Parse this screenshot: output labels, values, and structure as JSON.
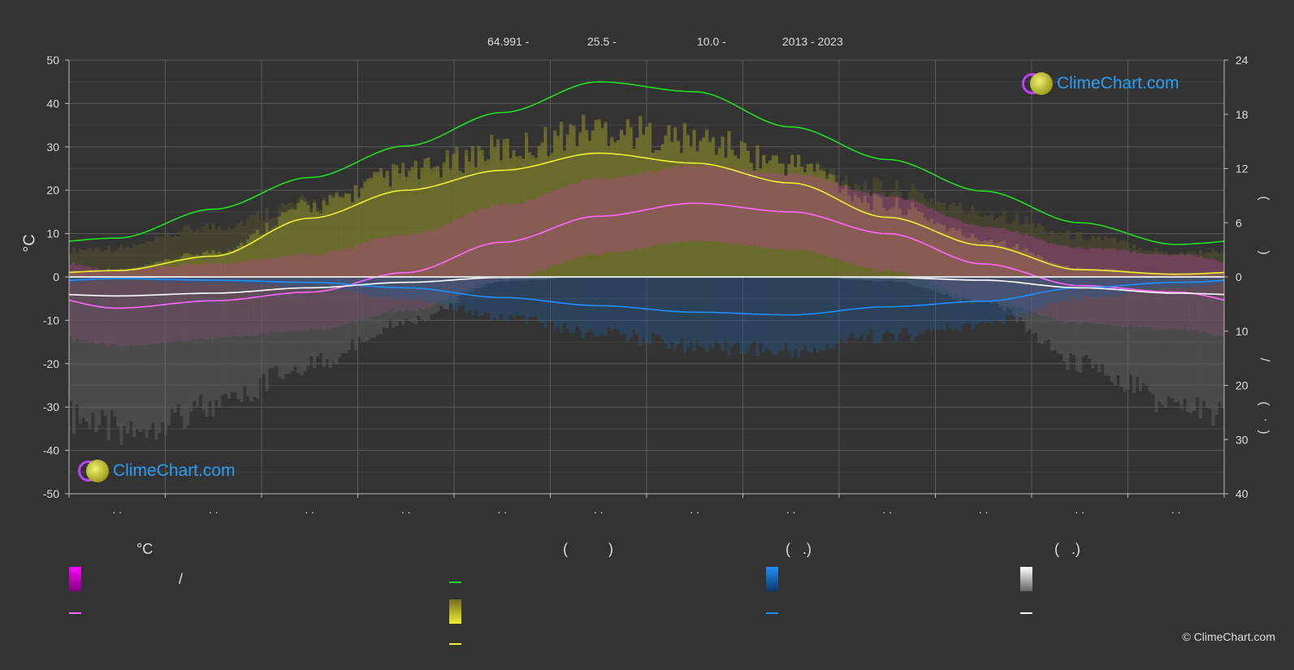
{
  "header": {
    "latitude": "64.991 -",
    "temp_value": "25.5 -",
    "rain_value": "10.0 -",
    "period": "2013 - 2023"
  },
  "brand": {
    "name": "ClimeChart.com",
    "copyright": "© ClimeChart.com"
  },
  "axes": {
    "left_label": "°C",
    "right_upper_marks": [
      "(",
      ")"
    ],
    "right_lower_marks": [
      "/",
      "(",
      "·",
      ")"
    ]
  },
  "legend": {
    "headers": [
      {
        "text": "°C"
      },
      {
        "text": "(          )"
      },
      {
        "text": "(   .)"
      },
      {
        "text": "(   .)"
      }
    ],
    "entries": [
      {
        "text": "/",
        "color": "#ff00ff",
        "kind": "gradient-box"
      },
      {
        "text": "",
        "color": "#ff66ff",
        "kind": "line"
      },
      {
        "text": "",
        "color": "#22dd22",
        "kind": "line"
      },
      {
        "text": "",
        "color": "#dede30",
        "kind": "gradient-box"
      },
      {
        "text": "",
        "color": "#eeee33",
        "kind": "line"
      },
      {
        "text": "",
        "color": "#1e8fff",
        "kind": "gradient-box"
      },
      {
        "text": "",
        "color": "#1e8fff",
        "kind": "line"
      },
      {
        "text": "",
        "color": "#eeeeee",
        "kind": "gradient-box"
      },
      {
        "text": "",
        "color": "#ffffff",
        "kind": "line"
      }
    ]
  },
  "chart_data": {
    "type": "line",
    "x": [
      0.5,
      1.5,
      2.5,
      3.5,
      4.5,
      5.5,
      6.5,
      7.5,
      8.5,
      9.5,
      10.5,
      11.5
    ],
    "x_tick_labels": [
      ". .",
      ". .",
      ". .",
      ". .",
      ". .",
      ". .",
      ". .",
      ". .",
      ". .",
      ". .",
      ". .",
      ". ."
    ],
    "xlim": [
      0,
      12
    ],
    "ylim_left": [
      -50,
      50
    ],
    "y_ticks_left": [
      50,
      40,
      30,
      20,
      10,
      0,
      -10,
      -20,
      -30,
      -40,
      -50
    ],
    "y_ticks_right_upper": [
      24,
      18,
      12,
      6,
      0
    ],
    "y_ticks_right_lower": [
      10,
      20,
      30,
      40
    ],
    "grid": true,
    "series": [
      {
        "color": "#22dd22",
        "axis": "right-hours",
        "values": [
          4.3,
          7.5,
          11.0,
          14.5,
          18.2,
          21.6,
          20.5,
          16.6,
          13.0,
          9.5,
          6.0,
          3.6
        ]
      },
      {
        "color": "#eeee33",
        "axis": "right-hours",
        "values": [
          0.7,
          2.3,
          6.5,
          9.6,
          11.8,
          13.7,
          12.6,
          10.4,
          6.6,
          3.5,
          0.8,
          0.3
        ]
      },
      {
        "color": "#ff66ff",
        "axis": "left",
        "values": [
          -7.2,
          -5.5,
          -3.5,
          1.0,
          8.0,
          14.0,
          17.0,
          15.0,
          10.0,
          3.0,
          -2.0,
          -3.5
        ]
      },
      {
        "color": "#1e8fff",
        "axis": "right-mm",
        "values": [
          0.3,
          0.6,
          1.0,
          2.0,
          3.8,
          5.3,
          6.5,
          7.0,
          5.5,
          4.5,
          2.0,
          1.0
        ]
      },
      {
        "color": "#ffffff",
        "axis": "right-mm",
        "values": [
          3.5,
          3.0,
          2.0,
          1.0,
          0.1,
          0,
          0,
          0,
          0.1,
          0.6,
          2.0,
          3.0
        ]
      }
    ]
  }
}
